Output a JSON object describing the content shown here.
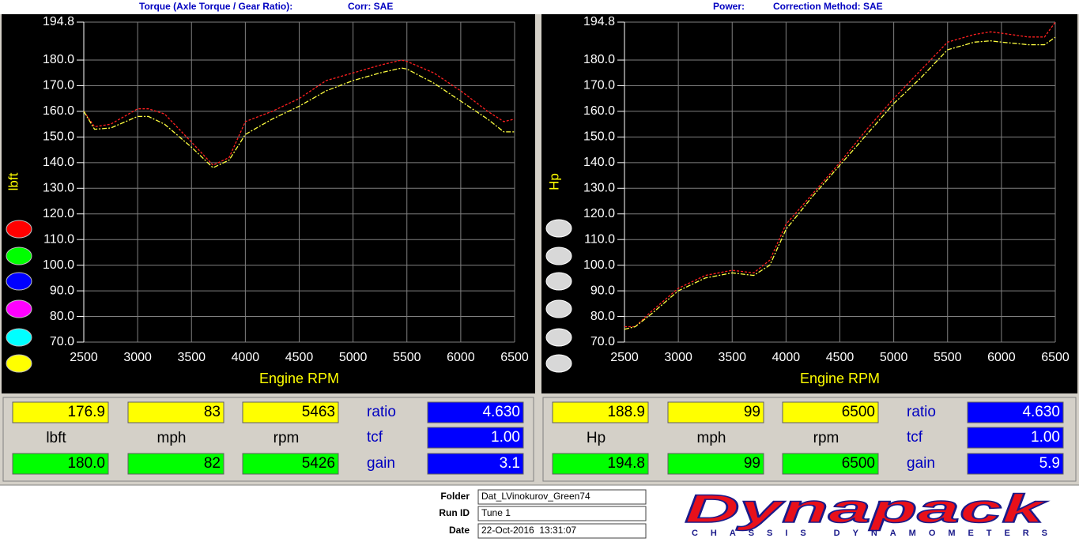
{
  "chart_data": [
    {
      "type": "line",
      "title": "Torque (Axle Torque / Gear Ratio):",
      "subtitle": "Corr: SAE",
      "y_label": "lbft",
      "x_label": "Engine RPM",
      "x": [
        2500,
        2600,
        2750,
        3000,
        3100,
        3250,
        3500,
        3700,
        3850,
        4000,
        4250,
        4500,
        4750,
        5000,
        5250,
        5450,
        5500,
        5750,
        6000,
        6250,
        6400,
        6500
      ],
      "series": [
        {
          "color": "#ff2020",
          "values": [
            160,
            154,
            155,
            161,
            161,
            159,
            148,
            139,
            142,
            156,
            160,
            165,
            172,
            175,
            178,
            180,
            179.5,
            175,
            168,
            160,
            156,
            157
          ]
        },
        {
          "color": "#ffff40",
          "values": [
            160,
            153,
            153.5,
            158,
            158,
            155,
            146,
            138,
            141,
            151,
            157,
            162,
            168,
            172,
            175,
            176.9,
            176.5,
            171,
            164,
            157,
            152,
            152
          ]
        }
      ],
      "xlim": [
        2500,
        6500
      ],
      "xticks": [
        2500,
        3000,
        3500,
        4000,
        4500,
        5000,
        5500,
        6000,
        6500
      ],
      "ylim": [
        70,
        194.8
      ],
      "yticks": [
        {
          "value": 70,
          "label": "70.0"
        },
        {
          "value": 80,
          "label": "80.0"
        },
        {
          "value": 90,
          "label": "90.0"
        },
        {
          "value": 100,
          "label": "100.0"
        },
        {
          "value": 110,
          "label": "110.0"
        },
        {
          "value": 120,
          "label": "120.0"
        },
        {
          "value": 130,
          "label": "130.0"
        },
        {
          "value": 140,
          "label": "140.0"
        },
        {
          "value": 150,
          "label": "150.0"
        },
        {
          "value": 160,
          "label": "160.0"
        },
        {
          "value": 170,
          "label": "170.0"
        },
        {
          "value": 180,
          "label": "180.0"
        },
        194.8
      ],
      "grid": true
    },
    {
      "type": "line",
      "title": "Power:",
      "subtitle": "Correction Method: SAE",
      "y_label": "Hp",
      "x_label": "Engine RPM",
      "x": [
        2500,
        2600,
        2750,
        3000,
        3250,
        3500,
        3700,
        3850,
        4000,
        4250,
        4500,
        4750,
        5000,
        5250,
        5500,
        5750,
        5900,
        6000,
        6250,
        6400,
        6500
      ],
      "series": [
        {
          "color": "#ff2020",
          "values": [
            76,
            76,
            82,
            91,
            96,
            98,
            97,
            102,
            116,
            128,
            140,
            153,
            165,
            176,
            187,
            190,
            191,
            190.5,
            189,
            189,
            194.8
          ]
        },
        {
          "color": "#ffff40",
          "values": [
            75,
            76,
            81,
            90,
            95,
            97,
            96,
            100,
            114,
            127,
            139,
            151,
            163,
            173,
            184,
            187,
            187.5,
            187,
            186,
            186,
            188.9
          ]
        }
      ],
      "xlim": [
        2500,
        6500
      ],
      "xticks": [
        2500,
        3000,
        3500,
        4000,
        4500,
        5000,
        5500,
        6000,
        6500
      ],
      "ylim": [
        70,
        194.8
      ],
      "yticks": [
        {
          "value": 70,
          "label": "70.0"
        },
        {
          "value": 80,
          "label": "80.0"
        },
        {
          "value": 90,
          "label": "90.0"
        },
        {
          "value": 100,
          "label": "100.0"
        },
        {
          "value": 110,
          "label": "110.0"
        },
        {
          "value": 120,
          "label": "120.0"
        },
        {
          "value": 130,
          "label": "130.0"
        },
        {
          "value": 140,
          "label": "140.0"
        },
        {
          "value": 150,
          "label": "150.0"
        },
        {
          "value": 160,
          "label": "160.0"
        },
        {
          "value": 170,
          "label": "170.0"
        },
        {
          "value": 180,
          "label": "180.0"
        },
        194.8
      ],
      "grid": true
    }
  ],
  "panels": [
    {
      "current": [
        "176.9",
        "83",
        "5463"
      ],
      "units": [
        "lbft",
        "mph",
        "rpm"
      ],
      "peak": [
        "180.0",
        "82",
        "5426"
      ],
      "params": [
        {
          "label": "ratio",
          "value": "4.630"
        },
        {
          "label": "tcf",
          "value": "1.00"
        },
        {
          "label": "gain",
          "value": "3.1"
        }
      ]
    },
    {
      "current": [
        "188.9",
        "99",
        "6500"
      ],
      "units": [
        "Hp",
        "mph",
        "rpm"
      ],
      "peak": [
        "194.8",
        "99",
        "6500"
      ],
      "params": [
        {
          "label": "ratio",
          "value": "4.630"
        },
        {
          "label": "tcf",
          "value": "1.00"
        },
        {
          "label": "gain",
          "value": "5.9"
        }
      ]
    }
  ],
  "footer": {
    "fields": [
      {
        "label": "Folder",
        "value": "Dat_LVinokurov_Green74"
      },
      {
        "label": "Run ID",
        "value": "Tune 1"
      },
      {
        "label": "Date",
        "value": "22-Oct-2016  13:31:07"
      }
    ],
    "logo": "Dynapack",
    "logo_sub": "CHASSIS DYNAMOMETERS"
  }
}
